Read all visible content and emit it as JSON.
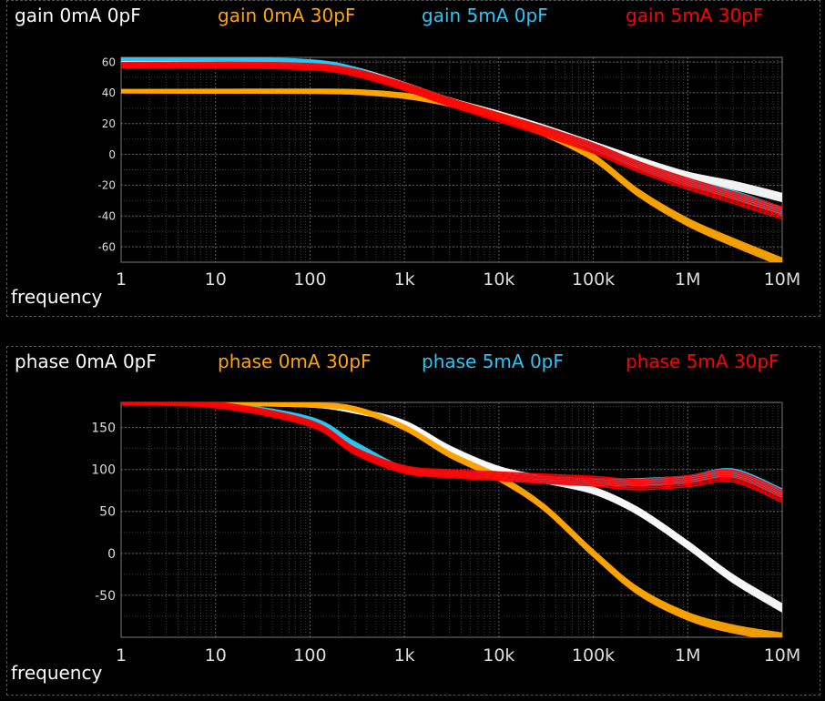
{
  "chart_data": [
    {
      "type": "line",
      "legend": [
        "gain 0mA 0pF",
        "gain 0mA 30pF",
        "gain 5mA 0pF",
        "gain 5mA 30pF"
      ],
      "xlabel": "frequency",
      "x_scale": "log",
      "xlim": [
        1,
        10000000
      ],
      "ylim": [
        -70,
        63
      ],
      "x_ticks": [
        "1",
        "10",
        "100",
        "1k",
        "10k",
        "100k",
        "1M",
        "10M"
      ],
      "x_tick_values": [
        1,
        10,
        100,
        1000,
        10000,
        100000,
        1000000,
        10000000
      ],
      "y_ticks": [
        "60",
        "40",
        "20",
        "0",
        "-20",
        "-40",
        "-60"
      ],
      "y_tick_values": [
        60,
        40,
        20,
        0,
        -20,
        -40,
        -60
      ],
      "grid": true,
      "series": [
        {
          "name": "gain 0mA 0pF",
          "color": "#ffffff",
          "x": [
            1,
            10,
            100,
            300,
            1000,
            3000,
            10000,
            30000,
            100000,
            300000,
            1000000,
            3000000,
            10000000
          ],
          "y": [
            60,
            60,
            59,
            55,
            45,
            35,
            26,
            17,
            6,
            -4,
            -14,
            -20,
            -28
          ]
        },
        {
          "name": "gain 0mA 30pF",
          "color": "#ffa500",
          "x": [
            1,
            10,
            100,
            300,
            1000,
            3000,
            10000,
            30000,
            100000,
            300000,
            1000000,
            3000000,
            10000000
          ],
          "y": [
            41,
            41,
            41,
            40.5,
            38,
            33,
            25,
            14,
            -2,
            -25,
            -44,
            -57,
            -70
          ]
        },
        {
          "name": "gain 5mA 0pF",
          "color": "#29c5f6",
          "x": [
            1,
            10,
            100,
            300,
            1000,
            3000,
            10000,
            30000,
            100000,
            300000,
            1000000,
            3000000,
            10000000
          ],
          "y": [
            62,
            62,
            60,
            55,
            44,
            34,
            25,
            16,
            5,
            -7,
            -18,
            -26,
            -37
          ]
        },
        {
          "name": "gain 5mA 30pF",
          "color": "#ff0000",
          "x": [
            1,
            10,
            100,
            300,
            1000,
            3000,
            10000,
            30000,
            100000,
            300000,
            1000000,
            3000000,
            10000000
          ],
          "y": [
            58,
            58,
            57,
            53,
            44,
            34,
            24,
            15,
            4,
            -8,
            -19,
            -28,
            -38
          ]
        }
      ]
    },
    {
      "type": "line",
      "legend": [
        "phase 0mA 0pF",
        "phase 0mA 30pF",
        "phase 5mA 0pF",
        "phase 5mA 30pF"
      ],
      "xlabel": "frequency",
      "x_scale": "log",
      "xlim": [
        1,
        10000000
      ],
      "ylim": [
        -100,
        180
      ],
      "x_ticks": [
        "1",
        "10",
        "100",
        "1k",
        "10k",
        "100k",
        "1M",
        "10M"
      ],
      "x_tick_values": [
        1,
        10,
        100,
        1000,
        10000,
        100000,
        1000000,
        10000000
      ],
      "y_ticks": [
        "150",
        "100",
        "50",
        "0",
        "-50"
      ],
      "y_tick_values": [
        150,
        100,
        50,
        0,
        -50
      ],
      "grid": true,
      "series": [
        {
          "name": "phase 0mA 0pF",
          "color": "#ffffff",
          "x": [
            1,
            10,
            100,
            300,
            1000,
            3000,
            10000,
            30000,
            100000,
            300000,
            1000000,
            3000000,
            10000000
          ],
          "y": [
            180,
            179,
            177,
            170,
            155,
            125,
            100,
            88,
            75,
            50,
            10,
            -30,
            -65
          ]
        },
        {
          "name": "phase 0mA 30pF",
          "color": "#ffa500",
          "x": [
            1,
            10,
            100,
            300,
            1000,
            3000,
            10000,
            30000,
            100000,
            300000,
            1000000,
            3000000,
            10000000
          ],
          "y": [
            180,
            179,
            177,
            172,
            150,
            118,
            90,
            55,
            0,
            -45,
            -75,
            -90,
            -100
          ]
        },
        {
          "name": "phase 5mA 0pF",
          "color": "#29c5f6",
          "x": [
            1,
            10,
            100,
            300,
            1000,
            3000,
            10000,
            30000,
            100000,
            300000,
            1000000,
            3000000,
            10000000
          ],
          "y": [
            180,
            178,
            160,
            130,
            100,
            95,
            92,
            88,
            85,
            85,
            88,
            96,
            72
          ]
        },
        {
          "name": "phase 5mA 30pF",
          "color": "#ff0000",
          "x": [
            1,
            10,
            100,
            300,
            1000,
            3000,
            10000,
            30000,
            100000,
            300000,
            1000000,
            3000000,
            10000000
          ],
          "y": [
            180,
            177,
            155,
            122,
            100,
            95,
            92,
            89,
            86,
            82,
            86,
            92,
            68
          ]
        }
      ]
    }
  ]
}
